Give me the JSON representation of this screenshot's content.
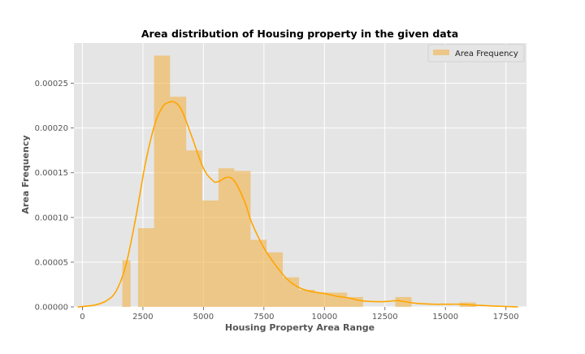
{
  "chart_data": {
    "type": "bar",
    "title": "Area distribution of Housing property in the given data",
    "xlabel": "Housing Property Area Range",
    "ylabel": "Area Frequency",
    "xlim": [
      -350,
      18350
    ],
    "ylim": [
      0,
      0.000295
    ],
    "xticks": [
      0,
      2500,
      5000,
      7500,
      10000,
      12500,
      15000,
      17500
    ],
    "xtick_labels": [
      "0",
      "2500",
      "5000",
      "7500",
      "10000",
      "12500",
      "15000",
      "17500"
    ],
    "yticks": [
      0,
      5e-05,
      0.0001,
      0.00015,
      0.0002,
      0.00025
    ],
    "ytick_labels": [
      "0.00000",
      "0.00005",
      "0.00010",
      "0.00015",
      "0.00020",
      "0.00025"
    ],
    "grid": true,
    "legend_position": "top-right",
    "series": [
      {
        "name": "Area Frequency",
        "kind": "histogram",
        "color": "#f0b24a",
        "bins": [
          {
            "x0": 1650,
            "x1": 1990,
            "value": 5.2e-05
          },
          {
            "x0": 2300,
            "x1": 2960,
            "value": 8.8e-05
          },
          {
            "x0": 2960,
            "x1": 3620,
            "value": 0.000281
          },
          {
            "x0": 3620,
            "x1": 4290,
            "value": 0.000235
          },
          {
            "x0": 4290,
            "x1": 4950,
            "value": 0.000175
          },
          {
            "x0": 4950,
            "x1": 5620,
            "value": 0.000119
          },
          {
            "x0": 5620,
            "x1": 6280,
            "value": 0.000155
          },
          {
            "x0": 6280,
            "x1": 6950,
            "value": 0.000152
          },
          {
            "x0": 6950,
            "x1": 7610,
            "value": 7.5e-05
          },
          {
            "x0": 7610,
            "x1": 8280,
            "value": 6.1e-05
          },
          {
            "x0": 8280,
            "x1": 8950,
            "value": 3.3e-05
          },
          {
            "x0": 8950,
            "x1": 9610,
            "value": 1.9e-05
          },
          {
            "x0": 9610,
            "x1": 10270,
            "value": 1.6e-05
          },
          {
            "x0": 10270,
            "x1": 10940,
            "value": 1.6e-05
          },
          {
            "x0": 10940,
            "x1": 11600,
            "value": 1.1e-05
          },
          {
            "x0": 12930,
            "x1": 13600,
            "value": 1.1e-05
          },
          {
            "x0": 15590,
            "x1": 16260,
            "value": 5e-06
          }
        ]
      },
      {
        "kind": "kde",
        "color": "#ffa500",
        "x": [
          -200,
          500,
          1000,
          1400,
          1800,
          2200,
          2600,
          3000,
          3300,
          3500,
          3800,
          4100,
          4500,
          5000,
          5400,
          5600,
          6000,
          6300,
          6700,
          7000,
          7500,
          8000,
          8500,
          9000,
          9500,
          10000,
          10500,
          11000,
          11500,
          12000,
          12500,
          13000,
          13300,
          13800,
          14500,
          15000,
          15600,
          16200,
          17000,
          18000
        ],
        "y": [
          0,
          2e-06,
          7e-06,
          1.8e-05,
          4.7e-05,
          9.9e-05,
          0.00016,
          0.000205,
          0.000223,
          0.000228,
          0.000229,
          0.00022,
          0.000192,
          0.000155,
          0.000141,
          0.00014,
          0.000145,
          0.00014,
          0.000118,
          9.4e-05,
          6.6e-05,
          4.6e-05,
          3e-05,
          2.1e-05,
          1.7e-05,
          1.5e-05,
          1.2e-05,
          1e-05,
          7e-06,
          6e-06,
          6e-06,
          7e-06,
          6e-06,
          4e-06,
          3e-06,
          3e-06,
          3e-06,
          2e-06,
          1e-06,
          0
        ]
      }
    ]
  }
}
